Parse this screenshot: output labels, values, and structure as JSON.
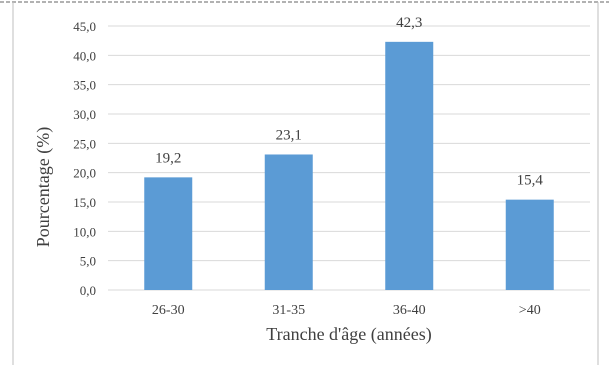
{
  "chart_data": {
    "type": "bar",
    "title": "",
    "xlabel": "Tranche d'âge (années)",
    "ylabel": "Pourcentage (%)",
    "categories": [
      "26-30",
      "31-35",
      "36-40",
      ">40"
    ],
    "values": [
      19.2,
      23.1,
      42.3,
      15.4
    ],
    "data_labels": [
      "19,2",
      "23,1",
      "42,3",
      "15,4"
    ],
    "y_ticks": [
      "0,0",
      "5,0",
      "10,0",
      "15,0",
      "20,0",
      "25,0",
      "30,0",
      "35,0",
      "40,0",
      "45,0"
    ],
    "y_tick_values": [
      0,
      5,
      10,
      15,
      20,
      25,
      30,
      35,
      40,
      45
    ],
    "ylim": [
      0,
      45
    ],
    "grid": true,
    "legend": "none",
    "bar_color": "#5b9bd5",
    "grid_color": "#d9d9d9"
  }
}
